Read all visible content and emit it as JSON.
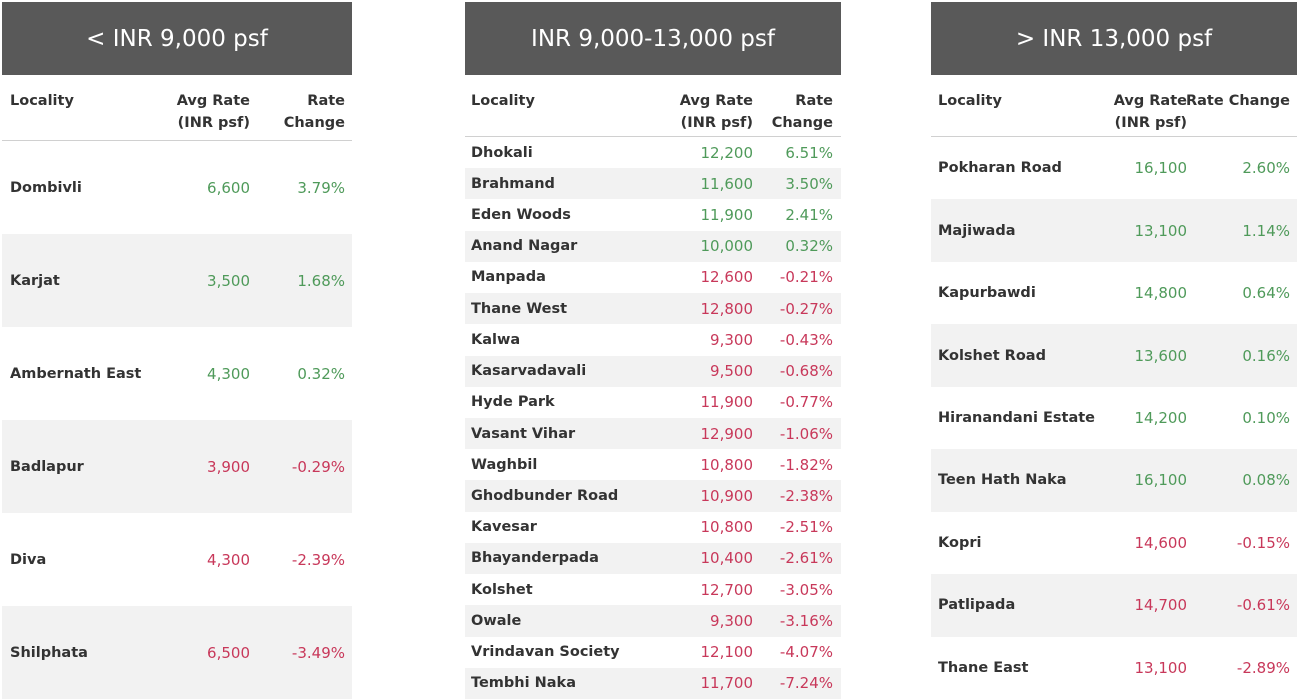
{
  "tables": [
    {
      "title": "< INR 9,000 psf",
      "columns": [
        [
          "Locality"
        ],
        [
          "Avg Rate",
          "(INR psf)"
        ],
        [
          "Rate",
          "Change"
        ]
      ],
      "rows": [
        [
          "Dombivli",
          "6,600",
          "3.79%"
        ],
        [
          "Karjat",
          "3,500",
          "1.68%"
        ],
        [
          "Ambernath East",
          "4,300",
          "0.32%"
        ],
        [
          "Badlapur",
          "3,900",
          "-0.29%"
        ],
        [
          "Diva",
          "4,300",
          "-2.39%"
        ],
        [
          "Shilphata",
          "6,500",
          "-3.49%"
        ]
      ]
    },
    {
      "title": "INR 9,000-13,000 psf",
      "columns": [
        [
          "Locality"
        ],
        [
          "Avg Rate",
          "(INR psf)"
        ],
        [
          "Rate",
          "Change"
        ]
      ],
      "rows": [
        [
          "Dhokali",
          "12,200",
          "6.51%"
        ],
        [
          "Brahmand",
          "11,600",
          "3.50%"
        ],
        [
          "Eden Woods",
          "11,900",
          "2.41%"
        ],
        [
          "Anand Nagar",
          "10,000",
          "0.32%"
        ],
        [
          "Manpada",
          "12,600",
          "-0.21%"
        ],
        [
          "Thane West",
          "12,800",
          "-0.27%"
        ],
        [
          "Kalwa",
          "9,300",
          "-0.43%"
        ],
        [
          "Kasarvadavali",
          "9,500",
          "-0.68%"
        ],
        [
          "Hyde Park",
          "11,900",
          "-0.77%"
        ],
        [
          "Vasant Vihar",
          "12,900",
          "-1.06%"
        ],
        [
          "Waghbil",
          "10,800",
          "-1.82%"
        ],
        [
          "Ghodbunder Road",
          "10,900",
          "-2.38%"
        ],
        [
          "Kavesar",
          "10,800",
          "-2.51%"
        ],
        [
          "Bhayanderpada",
          "10,400",
          "-2.61%"
        ],
        [
          "Kolshet",
          "12,700",
          "-3.05%"
        ],
        [
          "Owale",
          "9,300",
          "-3.16%"
        ],
        [
          "Vrindavan Society",
          "12,100",
          "-4.07%"
        ],
        [
          "Tembhi Naka",
          "11,700",
          "-7.24%"
        ]
      ]
    },
    {
      "title": "> INR 13,000 psf",
      "columns": [
        [
          "Locality"
        ],
        [
          "Avg Rate",
          "(INR psf)"
        ],
        [
          "Rate Change"
        ]
      ],
      "rows": [
        [
          "Pokharan Road",
          "16,100",
          "2.60%"
        ],
        [
          "Majiwada",
          "13,100",
          "1.14%"
        ],
        [
          "Kapurbawdi",
          "14,800",
          "0.64%"
        ],
        [
          "Kolshet Road",
          "13,600",
          "0.16%"
        ],
        [
          "Hiranandani Estate",
          "14,200",
          "0.10%"
        ],
        [
          "Teen Hath Naka",
          "16,100",
          "0.08%"
        ],
        [
          "Kopri",
          "14,600",
          "-0.15%"
        ],
        [
          "Patlipada",
          "14,700",
          "-0.61%"
        ],
        [
          "Thane East",
          "13,100",
          "-2.89%"
        ]
      ]
    }
  ]
}
